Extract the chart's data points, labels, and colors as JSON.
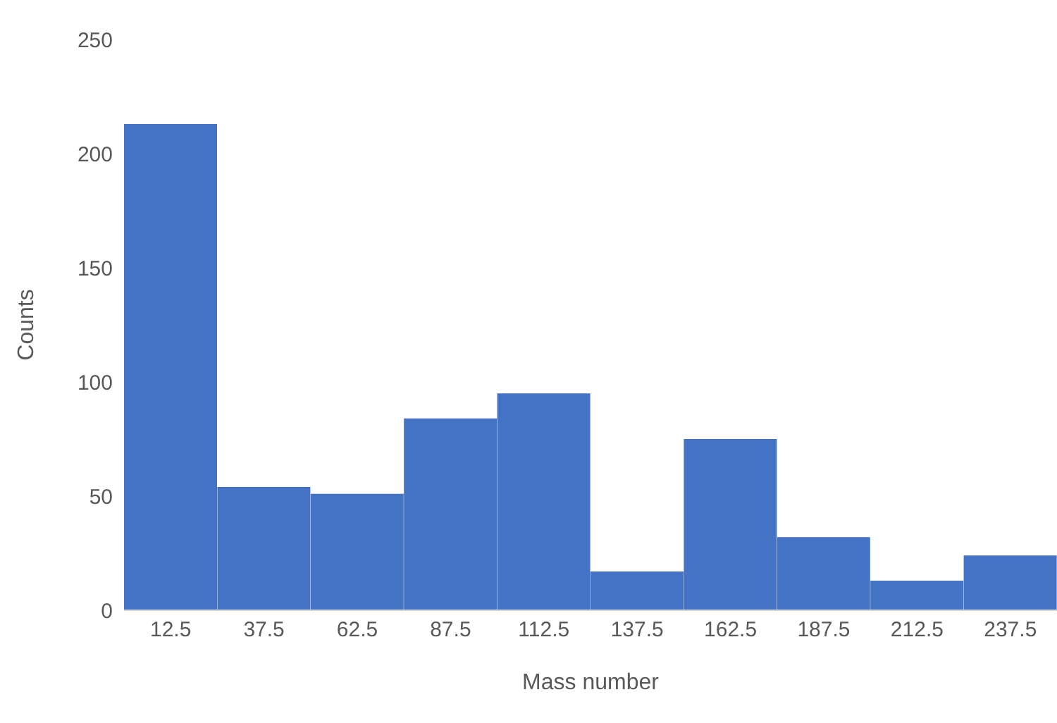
{
  "chart_data": {
    "type": "bar",
    "xlabel": "Mass number",
    "ylabel": "Counts",
    "categories": [
      "12.5",
      "37.5",
      "62.5",
      "87.5",
      "112.5",
      "137.5",
      "162.5",
      "187.5",
      "212.5",
      "237.5"
    ],
    "values": [
      213,
      54,
      51,
      84,
      95,
      17,
      75,
      32,
      13,
      24
    ],
    "color": "#4472c4",
    "ylim": [
      0,
      250
    ],
    "yticks": [
      0,
      50,
      100,
      150,
      200,
      250
    ],
    "grid": false,
    "legend": false
  }
}
